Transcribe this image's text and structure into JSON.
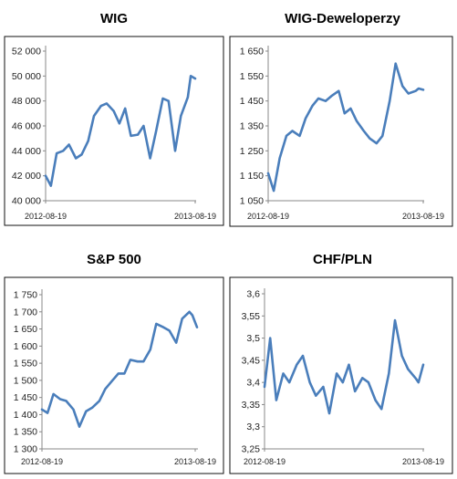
{
  "chart_data": [
    {
      "type": "line",
      "title": "WIG",
      "x_labels": [
        "2012-08-19",
        "2013-08-19"
      ],
      "yticks": [
        "40 000",
        "42 000",
        "44 000",
        "46 000",
        "48 000",
        "50 000",
        "52 000"
      ],
      "ylim": [
        40000,
        52000
      ],
      "grid": false,
      "legend": "none",
      "color": "#4a7ebb",
      "series": [
        {
          "x": [
            "2012-08-19",
            "2012-09-01",
            "2012-09-15",
            "2012-10-01",
            "2012-10-15",
            "2012-11-01",
            "2012-11-15",
            "2012-12-01",
            "2012-12-15",
            "2013-01-01",
            "2013-01-15",
            "2013-02-01",
            "2013-02-15",
            "2013-03-01",
            "2013-03-15",
            "2013-04-01",
            "2013-04-15",
            "2013-05-01",
            "2013-05-15",
            "2013-06-01",
            "2013-06-15",
            "2013-07-01",
            "2013-07-15",
            "2013-08-01",
            "2013-08-08",
            "2013-08-19"
          ],
          "values": [
            42000,
            41200,
            43800,
            44000,
            44500,
            43400,
            43700,
            44800,
            46800,
            47600,
            47800,
            47200,
            46200,
            47400,
            45200,
            45300,
            46000,
            43400,
            45500,
            48200,
            48000,
            44000,
            46800,
            48300,
            50000,
            49800
          ]
        }
      ]
    },
    {
      "type": "line",
      "title": "WIG-Deweloperzy",
      "x_labels": [
        "2012-08-19",
        "2013-08-19"
      ],
      "yticks": [
        "1 050",
        "1 150",
        "1 250",
        "1 350",
        "1 450",
        "1 550",
        "1 650"
      ],
      "ylim": [
        1050,
        1650
      ],
      "grid": false,
      "legend": "none",
      "color": "#4a7ebb",
      "series": [
        {
          "x": [
            "2012-08-19",
            "2012-09-01",
            "2012-09-15",
            "2012-10-01",
            "2012-10-15",
            "2012-11-01",
            "2012-11-15",
            "2012-12-01",
            "2012-12-15",
            "2013-01-01",
            "2013-01-15",
            "2013-02-01",
            "2013-02-15",
            "2013-03-01",
            "2013-03-15",
            "2013-04-01",
            "2013-04-15",
            "2013-05-01",
            "2013-05-15",
            "2013-06-01",
            "2013-06-15",
            "2013-07-01",
            "2013-07-15",
            "2013-08-01",
            "2013-08-08",
            "2013-08-19"
          ],
          "values": [
            1160,
            1090,
            1220,
            1310,
            1330,
            1310,
            1380,
            1430,
            1460,
            1450,
            1470,
            1490,
            1400,
            1420,
            1370,
            1330,
            1300,
            1280,
            1310,
            1450,
            1600,
            1510,
            1480,
            1490,
            1500,
            1495
          ]
        }
      ]
    },
    {
      "type": "line",
      "title": "S&P 500",
      "x_labels": [
        "2012-08-19",
        "2013-08-19"
      ],
      "yticks": [
        "1 300",
        "1 350",
        "1 400",
        "1 450",
        "1 500",
        "1 550",
        "1 600",
        "1 650",
        "1 700",
        "1 750"
      ],
      "ylim": [
        1300,
        1750
      ],
      "grid": false,
      "legend": "none",
      "color": "#4a7ebb",
      "series": [
        {
          "x": [
            "2012-08-19",
            "2012-09-01",
            "2012-09-15",
            "2012-10-01",
            "2012-10-15",
            "2012-11-01",
            "2012-11-15",
            "2012-12-01",
            "2012-12-15",
            "2013-01-01",
            "2013-01-15",
            "2013-02-01",
            "2013-02-15",
            "2013-03-01",
            "2013-03-15",
            "2013-04-01",
            "2013-04-15",
            "2013-05-01",
            "2013-05-15",
            "2013-06-01",
            "2013-06-15",
            "2013-07-01",
            "2013-07-15",
            "2013-08-01",
            "2013-08-08",
            "2013-08-19"
          ],
          "values": [
            1415,
            1405,
            1460,
            1445,
            1440,
            1415,
            1365,
            1410,
            1420,
            1440,
            1475,
            1500,
            1520,
            1520,
            1560,
            1555,
            1555,
            1590,
            1665,
            1655,
            1645,
            1610,
            1680,
            1700,
            1690,
            1655
          ]
        }
      ]
    },
    {
      "type": "line",
      "title": "CHF/PLN",
      "x_labels": [
        "2012-08-19",
        "2013-08-19"
      ],
      "yticks": [
        "3,25",
        "3,3",
        "3,35",
        "3,4",
        "3,45",
        "3,5",
        "3,55",
        "3,6"
      ],
      "ylim": [
        3.25,
        3.6
      ],
      "grid": false,
      "legend": "none",
      "color": "#4a7ebb",
      "series": [
        {
          "x": [
            "2012-08-19",
            "2012-09-01",
            "2012-09-15",
            "2012-10-01",
            "2012-10-15",
            "2012-11-01",
            "2012-11-15",
            "2012-12-01",
            "2012-12-15",
            "2013-01-01",
            "2013-01-15",
            "2013-02-01",
            "2013-02-15",
            "2013-03-01",
            "2013-03-15",
            "2013-04-01",
            "2013-04-15",
            "2013-05-01",
            "2013-05-15",
            "2013-06-01",
            "2013-06-15",
            "2013-07-01",
            "2013-07-15",
            "2013-08-01",
            "2013-08-08",
            "2013-08-19"
          ],
          "values": [
            3.39,
            3.5,
            3.36,
            3.42,
            3.4,
            3.44,
            3.46,
            3.4,
            3.37,
            3.39,
            3.33,
            3.42,
            3.4,
            3.44,
            3.38,
            3.41,
            3.4,
            3.36,
            3.34,
            3.42,
            3.54,
            3.46,
            3.43,
            3.41,
            3.4,
            3.44
          ]
        }
      ]
    }
  ]
}
